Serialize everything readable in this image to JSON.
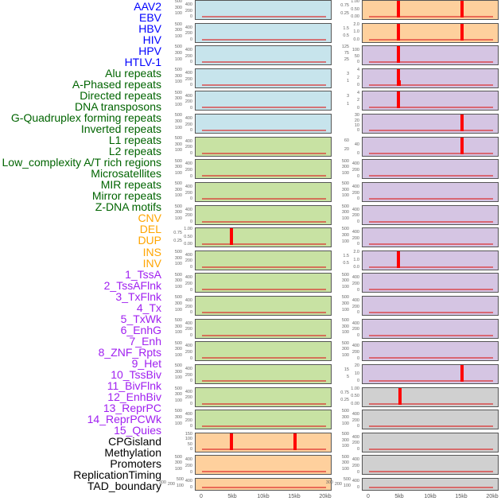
{
  "colors": {
    "blue": "#c7e4ec",
    "green": "#c8e2a3",
    "orange": "#fed09d",
    "purple": "#d5c5e3",
    "gray": "#d0d0d0",
    "spike": "#ff0000"
  },
  "labels": [
    {
      "t": "AAV2",
      "c": "#0000ff"
    },
    {
      "t": "EBV",
      "c": "#0000ff"
    },
    {
      "t": "HBV",
      "c": "#0000ff"
    },
    {
      "t": "HIV",
      "c": "#0000ff"
    },
    {
      "t": "HPV",
      "c": "#0000ff"
    },
    {
      "t": "HTLV-1",
      "c": "#0000ff"
    },
    {
      "t": "Alu repeats",
      "c": "#006400"
    },
    {
      "t": "A-Phased repeats",
      "c": "#006400"
    },
    {
      "t": "Directed repeats",
      "c": "#006400"
    },
    {
      "t": "DNA transposons",
      "c": "#006400"
    },
    {
      "t": "G-Quadruplex forming repeats",
      "c": "#006400"
    },
    {
      "t": "Inverted repeats",
      "c": "#006400"
    },
    {
      "t": "L1 repeats",
      "c": "#006400"
    },
    {
      "t": "L2 repeats",
      "c": "#006400"
    },
    {
      "t": "Low_complexity A/T rich regions",
      "c": "#006400"
    },
    {
      "t": "Microsatellites",
      "c": "#006400"
    },
    {
      "t": "MIR repeats",
      "c": "#006400"
    },
    {
      "t": "Mirror repeats",
      "c": "#006400"
    },
    {
      "t": "Z-DNA motifs",
      "c": "#006400"
    },
    {
      "t": "CNV",
      "c": "#ffa500"
    },
    {
      "t": "DEL",
      "c": "#ffa500"
    },
    {
      "t": "DUP",
      "c": "#ffa500"
    },
    {
      "t": "INS",
      "c": "#ffa500"
    },
    {
      "t": "INV",
      "c": "#ffa500"
    },
    {
      "t": "1_TssA",
      "c": "#a020f0"
    },
    {
      "t": "2_TssAFlnk",
      "c": "#a020f0"
    },
    {
      "t": "3_TxFlnk",
      "c": "#a020f0"
    },
    {
      "t": "4_Tx",
      "c": "#a020f0"
    },
    {
      "t": "5_TxWk",
      "c": "#a020f0"
    },
    {
      "t": "6_EnhG",
      "c": "#a020f0"
    },
    {
      "t": "7_Enh",
      "c": "#a020f0"
    },
    {
      "t": "8_ZNF_Rpts",
      "c": "#a020f0"
    },
    {
      "t": "9_Het",
      "c": "#a020f0"
    },
    {
      "t": "10_TssBiv",
      "c": "#a020f0"
    },
    {
      "t": "11_BivFlnk",
      "c": "#a020f0"
    },
    {
      "t": "12_EnhBiv",
      "c": "#a020f0"
    },
    {
      "t": "13_ReprPC",
      "c": "#a020f0"
    },
    {
      "t": "14_ReprPCWk",
      "c": "#a020f0"
    },
    {
      "t": "15_Quies",
      "c": "#a020f0"
    },
    {
      "t": "CPGisland",
      "c": "#000000"
    },
    {
      "t": "Methylation",
      "c": "#000000"
    },
    {
      "t": "Promoters",
      "c": "#000000"
    },
    {
      "t": "ReplicationTiming",
      "c": "#000000"
    },
    {
      "t": "TAD_boundary",
      "c": "#000000"
    }
  ],
  "chart_data": {
    "type": "bar",
    "x_ticks": [
      "0",
      "5kb",
      "10kb",
      "15kb",
      "20kb"
    ],
    "xlim_kb": [
      0,
      20
    ],
    "left": [
      {
        "c": "blue",
        "ticks": [
          "0",
          "100",
          "200",
          "300",
          "400",
          "500"
        ],
        "ymax": 500,
        "spikes": []
      },
      {
        "c": "blue",
        "ticks": [
          "0",
          "100",
          "200",
          "300",
          "400",
          "500"
        ],
        "ymax": 500,
        "spikes": []
      },
      {
        "c": "blue",
        "ticks": [
          "0",
          "100",
          "200",
          "300",
          "400",
          "500"
        ],
        "ymax": 500,
        "spikes": []
      },
      {
        "c": "blue",
        "ticks": [
          "0",
          "100",
          "200",
          "300",
          "400",
          "500"
        ],
        "ymax": 500,
        "spikes": []
      },
      {
        "c": "blue",
        "ticks": [
          "0",
          "100",
          "200",
          "300",
          "400",
          "500"
        ],
        "ymax": 500,
        "spikes": []
      },
      {
        "c": "blue",
        "ticks": [
          "0",
          "100",
          "200",
          "300",
          "400",
          "500"
        ],
        "ymax": 500,
        "spikes": []
      },
      {
        "c": "green",
        "ticks": [
          "0",
          "100",
          "200",
          "300",
          "400",
          "500"
        ],
        "ymax": 500,
        "spikes": []
      },
      {
        "c": "green",
        "ticks": [
          "0",
          "100",
          "200",
          "300",
          "400",
          "500"
        ],
        "ymax": 500,
        "spikes": []
      },
      {
        "c": "green",
        "ticks": [
          "0",
          "100",
          "200",
          "300",
          "400",
          "500"
        ],
        "ymax": 500,
        "spikes": []
      },
      {
        "c": "green",
        "ticks": [
          "0",
          "100",
          "200",
          "300",
          "400",
          "500"
        ],
        "ymax": 500,
        "spikes": []
      },
      {
        "c": "green",
        "ticks": [
          "0.00",
          "0.25",
          "0.50",
          "0.75",
          "1.00"
        ],
        "ymax": 1,
        "spikes": [
          {
            "x": 4.7,
            "v": 1
          }
        ]
      },
      {
        "c": "green",
        "ticks": [
          "0",
          "100",
          "200",
          "300",
          "400",
          "500"
        ],
        "ymax": 500,
        "spikes": []
      },
      {
        "c": "green",
        "ticks": [
          "0",
          "100",
          "200",
          "300",
          "400",
          "500"
        ],
        "ymax": 500,
        "spikes": []
      },
      {
        "c": "green",
        "ticks": [
          "0",
          "100",
          "200",
          "300",
          "400",
          "500"
        ],
        "ymax": 500,
        "spikes": []
      },
      {
        "c": "green",
        "ticks": [
          "0",
          "100",
          "200",
          "300",
          "400",
          "500"
        ],
        "ymax": 500,
        "spikes": []
      },
      {
        "c": "green",
        "ticks": [
          "0",
          "100",
          "200",
          "300",
          "400",
          "500"
        ],
        "ymax": 500,
        "spikes": []
      },
      {
        "c": "green",
        "ticks": [
          "0",
          "100",
          "200",
          "300",
          "400",
          "500"
        ],
        "ymax": 500,
        "spikes": []
      },
      {
        "c": "green",
        "ticks": [
          "0",
          "100",
          "200",
          "300",
          "400",
          "500"
        ],
        "ymax": 500,
        "spikes": []
      },
      {
        "c": "green",
        "ticks": [
          "0",
          "100",
          "200",
          "300",
          "400",
          "500"
        ],
        "ymax": 500,
        "spikes": []
      },
      {
        "c": "orange",
        "ticks": [
          "0",
          "50",
          "100",
          "150"
        ],
        "ymax": 150,
        "spikes": [
          {
            "x": 4.8,
            "v": 155
          },
          {
            "x": 15,
            "v": 155
          }
        ]
      },
      {
        "c": "orange",
        "ticks": [
          "0",
          "100",
          "200",
          "300",
          "400",
          "500"
        ],
        "ymax": 500,
        "spikes": []
      },
      {
        "c": "orange",
        "ticks": [
          "0",
          "100",
          "200",
          "300",
          "400",
          "500"
        ],
        "ymax": 500,
        "spikes": []
      }
    ],
    "right": [
      {
        "c": "orange",
        "ticks": [
          "0.00",
          "0.25",
          "0.50",
          "0.75",
          "1.00"
        ],
        "ymax": 1,
        "spikes": [
          {
            "x": 4.8,
            "v": 1.05
          },
          {
            "x": 15,
            "v": 1.05
          }
        ]
      },
      {
        "c": "orange",
        "ticks": [
          "0.0",
          "0.5",
          "1.0",
          "1.5",
          "2.0"
        ],
        "ymax": 2,
        "spikes": [
          {
            "x": 4.8,
            "v": 2.1
          },
          {
            "x": 15,
            "v": 2.1
          }
        ]
      },
      {
        "c": "purple",
        "ticks": [
          "0",
          "25",
          "50",
          "75",
          "100",
          "125"
        ],
        "ymax": 125,
        "spikes": [
          {
            "x": 4.8,
            "v": 130
          }
        ]
      },
      {
        "c": "purple",
        "ticks": [
          "0",
          "1",
          "2",
          "3",
          "4"
        ],
        "ymax": 4,
        "spikes": [
          {
            "x": 4.7,
            "v": 4
          },
          {
            "x": 4.95,
            "v": 1
          }
        ]
      },
      {
        "c": "purple",
        "ticks": [
          "0",
          "1",
          "2",
          "3",
          "4"
        ],
        "ymax": 4,
        "spikes": [
          {
            "x": 4.8,
            "v": 4.2
          }
        ]
      },
      {
        "c": "purple",
        "ticks": [
          "0",
          "10",
          "20",
          "30"
        ],
        "ymax": 30,
        "spikes": [
          {
            "x": 15,
            "v": 31
          }
        ]
      },
      {
        "c": "purple",
        "ticks": [
          "0",
          "20",
          "40",
          "60"
        ],
        "ymax": 70,
        "spikes": [
          {
            "x": 15,
            "v": 75
          }
        ]
      },
      {
        "c": "purple",
        "ticks": [
          "0",
          "100",
          "200",
          "300",
          "400",
          "500"
        ],
        "ymax": 500,
        "spikes": []
      },
      {
        "c": "purple",
        "ticks": [
          "0",
          "100",
          "200",
          "300",
          "400",
          "500"
        ],
        "ymax": 500,
        "spikes": []
      },
      {
        "c": "purple",
        "ticks": [
          "0",
          "100",
          "200",
          "300",
          "400",
          "500"
        ],
        "ymax": 500,
        "spikes": []
      },
      {
        "c": "purple",
        "ticks": [
          "0",
          "100",
          "200",
          "300",
          "400",
          "500"
        ],
        "ymax": 500,
        "spikes": []
      },
      {
        "c": "purple",
        "ticks": [
          "0.0",
          "0.5",
          "1.0",
          "1.5",
          "2.0"
        ],
        "ymax": 2,
        "spikes": [
          {
            "x": 4.7,
            "v": 2.1
          },
          {
            "x": 4.9,
            "v": 1
          }
        ]
      },
      {
        "c": "purple",
        "ticks": [
          "0",
          "100",
          "200",
          "300",
          "400",
          "500"
        ],
        "ymax": 500,
        "spikes": []
      },
      {
        "c": "purple",
        "ticks": [
          "0",
          "100",
          "200",
          "300",
          "400",
          "500"
        ],
        "ymax": 500,
        "spikes": []
      },
      {
        "c": "purple",
        "ticks": [
          "0",
          "100",
          "200",
          "300",
          "400",
          "500"
        ],
        "ymax": 500,
        "spikes": []
      },
      {
        "c": "purple",
        "ticks": [
          "0",
          "100",
          "200",
          "300",
          "400",
          "500"
        ],
        "ymax": 500,
        "spikes": []
      },
      {
        "c": "purple",
        "ticks": [
          "0",
          "5",
          "10",
          "15",
          "20"
        ],
        "ymax": 20,
        "spikes": [
          {
            "x": 15,
            "v": 23
          }
        ]
      },
      {
        "c": "gray",
        "ticks": [
          "0.00",
          "0.25",
          "0.50",
          "0.75",
          "1.00"
        ],
        "ymax": 1,
        "spikes": [
          {
            "x": 5,
            "v": 1.05
          }
        ]
      },
      {
        "c": "gray",
        "ticks": [
          "0",
          "100",
          "200",
          "300",
          "400",
          "500"
        ],
        "ymax": 500,
        "spikes": []
      },
      {
        "c": "gray",
        "ticks": [
          "0",
          "100",
          "200",
          "300",
          "400",
          "500"
        ],
        "ymax": 500,
        "spikes": []
      },
      {
        "c": "gray",
        "ticks": [
          "0",
          "100",
          "200",
          "300",
          "400",
          "500"
        ],
        "ymax": 500,
        "spikes": []
      },
      {
        "c": "gray",
        "ticks": [
          "0",
          "100",
          "200",
          "300",
          "400",
          "500"
        ],
        "ymax": 500,
        "spikes": []
      }
    ]
  }
}
